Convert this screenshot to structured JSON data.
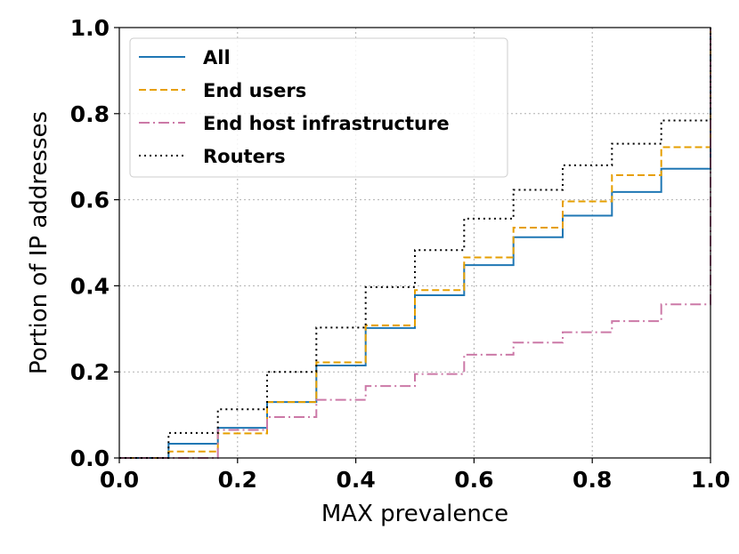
{
  "chart_data": {
    "type": "line",
    "title": "",
    "xlabel": "MAX prevalence",
    "ylabel": "Portion of IP addresses",
    "xlim": [
      0.0,
      1.0
    ],
    "ylim": [
      0.0,
      1.0
    ],
    "grid": true,
    "legend_position": "top-left",
    "x_ticks": [
      "0.0",
      "0.2",
      "0.4",
      "0.6",
      "0.8",
      "1.0"
    ],
    "y_ticks": [
      "0.0",
      "0.2",
      "0.4",
      "0.6",
      "0.8",
      "1.0"
    ],
    "x": [
      0,
      0.0833,
      0.1667,
      0.25,
      0.3333,
      0.4167,
      0.5,
      0.5833,
      0.6667,
      0.75,
      0.8333,
      0.9167,
      1.0
    ],
    "series": [
      {
        "name": "All",
        "color": "#1f77b4",
        "dash": "solid",
        "values": [
          0.0,
          0.033,
          0.07,
          0.13,
          0.215,
          0.302,
          0.378,
          0.448,
          0.513,
          0.563,
          0.618,
          0.672,
          1.0
        ]
      },
      {
        "name": "End users",
        "color": "#e69f00",
        "dash": "dashed",
        "values": [
          0.0,
          0.015,
          0.057,
          0.13,
          0.222,
          0.308,
          0.39,
          0.466,
          0.535,
          0.596,
          0.657,
          0.722,
          1.0
        ]
      },
      {
        "name": "End host infrastructure",
        "color": "#cc79a7",
        "dash": "dashdot",
        "values": [
          0.0,
          0.0,
          0.065,
          0.095,
          0.135,
          0.167,
          0.195,
          0.24,
          0.268,
          0.292,
          0.318,
          0.357,
          1.0
        ]
      },
      {
        "name": "Routers",
        "color": "#000000",
        "dash": "dotted",
        "values": [
          0.0,
          0.058,
          0.113,
          0.2,
          0.303,
          0.397,
          0.483,
          0.556,
          0.623,
          0.68,
          0.73,
          0.784,
          1.0
        ]
      }
    ]
  }
}
